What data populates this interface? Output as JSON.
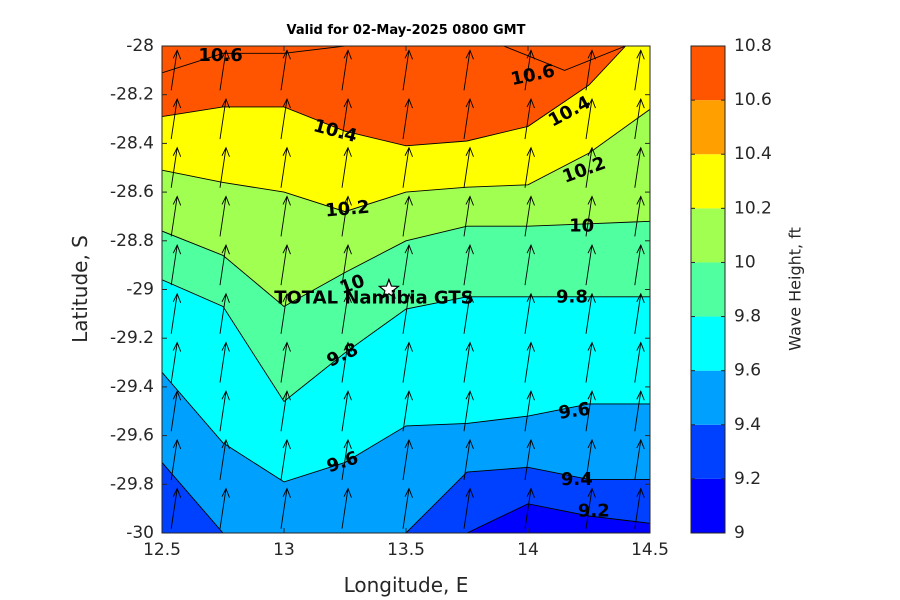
{
  "chart_data": {
    "type": "contour",
    "title": "Valid for 02-May-2025 0800 GMT",
    "xlabel": "Longitude, E",
    "ylabel": "Latitude, S",
    "xlim": [
      12.5,
      14.5
    ],
    "ylim": [
      -30,
      -28
    ],
    "xticks": [
      "12.5",
      "13",
      "13.5",
      "14",
      "14.5"
    ],
    "yticks": [
      "-28",
      "-28.2",
      "-28.4",
      "-28.6",
      "-28.8",
      "-29",
      "-29.2",
      "-29.4",
      "-29.6",
      "-29.8",
      "-30"
    ],
    "colorbar": {
      "label": "Wave Height, ft",
      "range": [
        9,
        10.8
      ],
      "ticks": [
        "9",
        "9.2",
        "9.4",
        "9.6",
        "9.8",
        "10",
        "10.2",
        "10.4",
        "10.6",
        "10.8"
      ],
      "colors": [
        "#0000ff",
        "#0040ff",
        "#00a0ff",
        "#00ffff",
        "#50ffa0",
        "#a0ff50",
        "#ffff00",
        "#ffa000",
        "#ff5500"
      ]
    },
    "contour_levels": [
      9.2,
      9.4,
      9.6,
      9.8,
      10,
      10.2,
      10.4,
      10.6
    ],
    "isolines": [
      {
        "level": 10.6,
        "points": [
          [
            12.5,
            -28.11
          ],
          [
            12.75,
            -28.03
          ],
          [
            13,
            -28.03
          ],
          [
            13.25,
            -28.0
          ]
        ]
      },
      {
        "level": 10.6,
        "points": [
          [
            13.9,
            -28.0
          ],
          [
            14.15,
            -28.1
          ],
          [
            14.4,
            -28.0
          ]
        ]
      },
      {
        "level": 10.4,
        "points": [
          [
            12.5,
            -28.29
          ],
          [
            12.75,
            -28.25
          ],
          [
            13,
            -28.25
          ],
          [
            13.25,
            -28.35
          ],
          [
            13.5,
            -28.41
          ],
          [
            13.75,
            -28.39
          ],
          [
            14,
            -28.33
          ],
          [
            14.25,
            -28.16
          ],
          [
            14.4,
            -28.0
          ]
        ]
      },
      {
        "level": 10.2,
        "points": [
          [
            12.5,
            -28.51
          ],
          [
            12.75,
            -28.56
          ],
          [
            13,
            -28.6
          ],
          [
            13.25,
            -28.68
          ],
          [
            13.5,
            -28.6
          ],
          [
            13.75,
            -28.58
          ],
          [
            14,
            -28.57
          ],
          [
            14.25,
            -28.44
          ],
          [
            14.5,
            -28.26
          ]
        ]
      },
      {
        "level": 10,
        "points": [
          [
            12.5,
            -28.76
          ],
          [
            12.75,
            -28.86
          ],
          [
            13,
            -29.07
          ],
          [
            13.25,
            -28.93
          ],
          [
            13.5,
            -28.8
          ],
          [
            13.75,
            -28.74
          ],
          [
            14,
            -28.74
          ],
          [
            14.25,
            -28.73
          ],
          [
            14.5,
            -28.72
          ]
        ]
      },
      {
        "level": 9.8,
        "points": [
          [
            12.5,
            -28.96
          ],
          [
            12.75,
            -29.07
          ],
          [
            13,
            -29.46
          ],
          [
            13.25,
            -29.26
          ],
          [
            13.5,
            -29.08
          ],
          [
            13.75,
            -29.03
          ],
          [
            14,
            -29.03
          ],
          [
            14.25,
            -29.03
          ],
          [
            14.5,
            -29.03
          ]
        ]
      },
      {
        "level": 9.6,
        "points": [
          [
            12.5,
            -29.34
          ],
          [
            12.75,
            -29.63
          ],
          [
            13,
            -29.79
          ],
          [
            13.25,
            -29.71
          ],
          [
            13.5,
            -29.56
          ],
          [
            13.75,
            -29.55
          ],
          [
            14,
            -29.52
          ],
          [
            14.25,
            -29.47
          ],
          [
            14.5,
            -29.47
          ]
        ]
      },
      {
        "level": 9.4,
        "points": [
          [
            12.5,
            -29.71
          ],
          [
            12.75,
            -30.0
          ]
        ]
      },
      {
        "level": 9.4,
        "points": [
          [
            13.5,
            -30.0
          ],
          [
            13.75,
            -29.75
          ],
          [
            14,
            -29.73
          ],
          [
            14.25,
            -29.78
          ],
          [
            14.5,
            -29.78
          ]
        ]
      },
      {
        "level": 9.2,
        "points": [
          [
            13.75,
            -30.0
          ],
          [
            14,
            -29.88
          ],
          [
            14.25,
            -29.93
          ],
          [
            14.5,
            -29.96
          ]
        ]
      }
    ],
    "contour_labels": [
      {
        "text": "10.6",
        "lon": 12.74,
        "lat": -28.04,
        "angle": 0
      },
      {
        "text": "10.6",
        "lon": 14.02,
        "lat": -28.12,
        "angle": -12
      },
      {
        "text": "10.4",
        "lon": 13.21,
        "lat": -28.35,
        "angle": 15
      },
      {
        "text": "10.4",
        "lon": 14.17,
        "lat": -28.27,
        "angle": -28
      },
      {
        "text": "10.2",
        "lon": 13.26,
        "lat": -28.67,
        "angle": -5
      },
      {
        "text": "10.2",
        "lon": 14.23,
        "lat": -28.51,
        "angle": -20
      },
      {
        "text": "10",
        "lon": 14.22,
        "lat": -28.74,
        "angle": 0
      },
      {
        "text": "10",
        "lon": 13.28,
        "lat": -28.98,
        "angle": -20
      },
      {
        "text": "9.8",
        "lon": 14.18,
        "lat": -29.03,
        "angle": 0
      },
      {
        "text": "9.8",
        "lon": 13.24,
        "lat": -29.27,
        "angle": -25
      },
      {
        "text": "9.6",
        "lon": 14.19,
        "lat": -29.5,
        "angle": -8
      },
      {
        "text": "9.6",
        "lon": 13.24,
        "lat": -29.71,
        "angle": -18
      },
      {
        "text": "9.4",
        "lon": 14.2,
        "lat": -29.78,
        "angle": 0
      },
      {
        "text": "9.2",
        "lon": 14.27,
        "lat": -29.91,
        "angle": 0
      }
    ],
    "vector_grid": {
      "lon": [
        12.55,
        12.75,
        13.0,
        13.25,
        13.5,
        13.75,
        14.0,
        14.25,
        14.45
      ],
      "lat": [
        -28.1,
        -28.3,
        -28.5,
        -28.7,
        -28.9,
        -29.1,
        -29.3,
        -29.5,
        -29.7,
        -29.9
      ],
      "direction": "north-northeast"
    },
    "marker": {
      "label": "TOTAL Namibia GTS",
      "lon": 13.43,
      "lat": -29.0,
      "symbol": "star"
    }
  }
}
